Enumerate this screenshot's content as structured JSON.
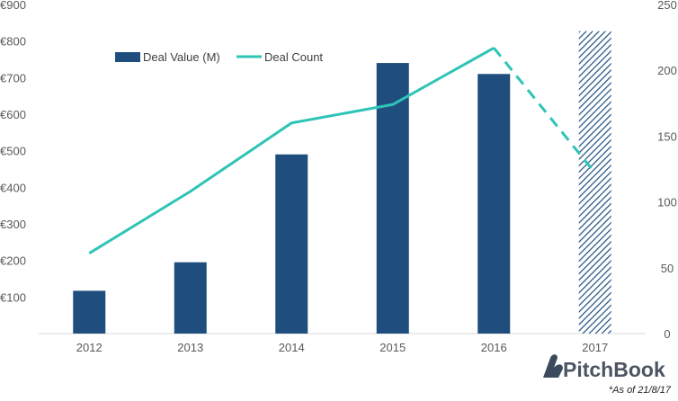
{
  "chart_data": {
    "type": "bar",
    "categories": [
      "2012",
      "2013",
      "2014",
      "2015",
      "2016",
      "2017"
    ],
    "series": [
      {
        "name": "Deal Value (M)",
        "type": "bar",
        "axis": "left",
        "values": [
          117,
          195,
          490,
          740,
          710,
          827
        ],
        "partial_last": true,
        "color": "#1f4e7e"
      },
      {
        "name": "Deal Count",
        "type": "line",
        "axis": "right",
        "values": [
          61,
          108,
          160,
          174,
          217,
          122
        ],
        "partial_last": true,
        "color": "#2ec4b6"
      }
    ],
    "y_left": {
      "min": 0,
      "max": 900,
      "ticks": [
        "€100",
        "€200",
        "€300",
        "€400",
        "€500",
        "€600",
        "€700",
        "€800",
        "€900"
      ],
      "tick_values": [
        100,
        200,
        300,
        400,
        500,
        600,
        700,
        800,
        900
      ]
    },
    "y_right": {
      "min": 0,
      "max": 250,
      "ticks": [
        "0",
        "50",
        "100",
        "150",
        "200",
        "250"
      ],
      "tick_values": [
        0,
        50,
        100,
        150,
        200,
        250
      ]
    },
    "legend": {
      "position": "top-left"
    },
    "grid": false
  },
  "branding": {
    "logo_text": "PitchBook",
    "footnote": "*As of 21/8/17"
  }
}
